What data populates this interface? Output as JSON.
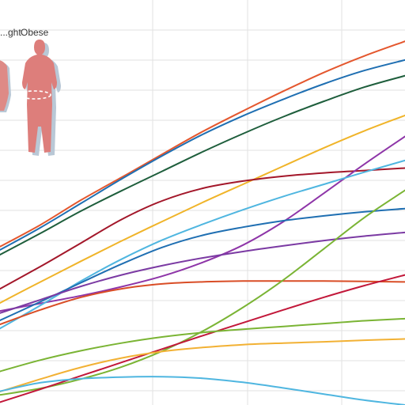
{
  "chart_data": {
    "type": "line",
    "title": "",
    "xlabel": "",
    "ylabel": "",
    "xlim": [
      0,
      100
    ],
    "ylim": [
      0,
      100
    ],
    "grid": true,
    "legend_labels": [
      "...ght",
      "Obese"
    ],
    "figure_colors": {
      "overweight": "#de8a86",
      "obese": "#dd7e7b",
      "shadow": "#b9c8d6",
      "waist_band": "#ffffff"
    },
    "series": [
      {
        "color": "#e4572e",
        "values": [
          [
            0,
            39.1
          ],
          [
            10,
            44.5
          ],
          [
            20,
            50.6
          ],
          [
            30,
            56.2
          ],
          [
            40,
            61.9
          ],
          [
            50,
            67.5
          ],
          [
            60,
            72.6
          ],
          [
            70,
            77.5
          ],
          [
            80,
            82.1
          ],
          [
            90,
            86.2
          ],
          [
            100,
            89.8
          ]
        ]
      },
      {
        "color": "#1f6fb2",
        "values": [
          [
            0,
            38.3
          ],
          [
            10,
            43.8
          ],
          [
            20,
            49.8
          ],
          [
            30,
            55.8
          ],
          [
            40,
            61.5
          ],
          [
            50,
            66.8
          ],
          [
            60,
            71.4
          ],
          [
            70,
            75.5
          ],
          [
            80,
            79.3
          ],
          [
            90,
            82.6
          ],
          [
            100,
            85.2
          ]
        ]
      },
      {
        "color": "#1e5e3c",
        "values": [
          [
            0,
            37.1
          ],
          [
            10,
            42.4
          ],
          [
            20,
            47.9
          ],
          [
            30,
            52.9
          ],
          [
            40,
            57.7
          ],
          [
            50,
            62.5
          ],
          [
            60,
            67.0
          ],
          [
            70,
            71.2
          ],
          [
            80,
            75.0
          ],
          [
            90,
            78.5
          ],
          [
            100,
            81.3
          ]
        ]
      },
      {
        "color": "#f0b429",
        "values": [
          [
            0,
            25.2
          ],
          [
            10,
            30.4
          ],
          [
            20,
            35.5
          ],
          [
            30,
            40.5
          ],
          [
            40,
            45.3
          ],
          [
            50,
            50.0
          ],
          [
            60,
            54.5
          ],
          [
            70,
            59.0
          ],
          [
            80,
            63.5
          ],
          [
            90,
            67.7
          ],
          [
            100,
            71.5
          ]
        ]
      },
      {
        "color": "#a3172a",
        "values": [
          [
            0,
            28.7
          ],
          [
            10,
            34.2
          ],
          [
            20,
            40.0
          ],
          [
            30,
            45.8
          ],
          [
            40,
            50.4
          ],
          [
            50,
            53.5
          ],
          [
            60,
            55.3
          ],
          [
            70,
            56.5
          ],
          [
            80,
            57.3
          ],
          [
            90,
            57.9
          ],
          [
            100,
            58.5
          ]
        ]
      },
      {
        "color": "#8e35a8",
        "values": [
          [
            0,
            23.2
          ],
          [
            10,
            25.1
          ],
          [
            20,
            27.0
          ],
          [
            30,
            29.2
          ],
          [
            40,
            31.8
          ],
          [
            50,
            35.2
          ],
          [
            60,
            39.5
          ],
          [
            70,
            45.3
          ],
          [
            80,
            52.3
          ],
          [
            90,
            59.5
          ],
          [
            100,
            66.3
          ]
        ]
      },
      {
        "color": "#4fb6e0",
        "values": [
          [
            0,
            18.9
          ],
          [
            10,
            24.6
          ],
          [
            20,
            30.6
          ],
          [
            30,
            36.0
          ],
          [
            40,
            40.7
          ],
          [
            50,
            44.6
          ],
          [
            60,
            48.2
          ],
          [
            70,
            51.5
          ],
          [
            80,
            54.5
          ],
          [
            90,
            57.5
          ],
          [
            100,
            60.4
          ]
        ]
      },
      {
        "color": "#1f6fb2",
        "values": [
          [
            0,
            20.9
          ],
          [
            10,
            25.5
          ],
          [
            20,
            30.2
          ],
          [
            30,
            34.8
          ],
          [
            40,
            38.9
          ],
          [
            50,
            41.9
          ],
          [
            60,
            43.9
          ],
          [
            70,
            45.5
          ],
          [
            80,
            46.7
          ],
          [
            90,
            47.7
          ],
          [
            100,
            48.5
          ]
        ]
      },
      {
        "color": "#7b3aa3",
        "values": [
          [
            0,
            22.7
          ],
          [
            10,
            26.0
          ],
          [
            20,
            29.3
          ],
          [
            30,
            32.1
          ],
          [
            40,
            34.4
          ],
          [
            50,
            36.3
          ],
          [
            60,
            37.9
          ],
          [
            70,
            39.3
          ],
          [
            80,
            40.6
          ],
          [
            90,
            41.7
          ],
          [
            100,
            42.6
          ]
        ]
      },
      {
        "color": "#d94d26",
        "values": [
          [
            0,
            19.9
          ],
          [
            10,
            23.5
          ],
          [
            20,
            26.6
          ],
          [
            30,
            28.7
          ],
          [
            40,
            29.9
          ],
          [
            50,
            30.4
          ],
          [
            60,
            30.6
          ],
          [
            70,
            30.6
          ],
          [
            80,
            30.6
          ],
          [
            90,
            30.5
          ],
          [
            100,
            30.4
          ]
        ]
      },
      {
        "color": "#7ab434",
        "values": [
          [
            0,
            2.5
          ],
          [
            10,
            4.1
          ],
          [
            20,
            6.4
          ],
          [
            30,
            9.4
          ],
          [
            40,
            13.3
          ],
          [
            50,
            18.2
          ],
          [
            60,
            24.1
          ],
          [
            70,
            30.9
          ],
          [
            80,
            38.6
          ],
          [
            90,
            46.3
          ],
          [
            100,
            53.0
          ]
        ]
      },
      {
        "color": "#c2183a",
        "values": [
          [
            0,
            0.7
          ],
          [
            10,
            3.9
          ],
          [
            20,
            7.2
          ],
          [
            30,
            10.5
          ],
          [
            40,
            13.8
          ],
          [
            50,
            17.1
          ],
          [
            60,
            20.3
          ],
          [
            70,
            23.5
          ],
          [
            80,
            26.6
          ],
          [
            90,
            29.5
          ],
          [
            100,
            32.1
          ]
        ]
      },
      {
        "color": "#7ab434",
        "values": [
          [
            0,
            8.3
          ],
          [
            10,
            11.1
          ],
          [
            20,
            13.4
          ],
          [
            30,
            15.3
          ],
          [
            40,
            16.8
          ],
          [
            50,
            17.9
          ],
          [
            60,
            18.7
          ],
          [
            70,
            19.4
          ],
          [
            80,
            20.1
          ],
          [
            90,
            20.8
          ],
          [
            100,
            21.3
          ]
        ]
      },
      {
        "color": "#f2b134",
        "values": [
          [
            0,
            3.3
          ],
          [
            10,
            6.4
          ],
          [
            20,
            9.3
          ],
          [
            30,
            11.6
          ],
          [
            40,
            13.2
          ],
          [
            50,
            14.2
          ],
          [
            60,
            14.9
          ],
          [
            70,
            15.3
          ],
          [
            80,
            15.6
          ],
          [
            90,
            16.0
          ],
          [
            100,
            16.3
          ]
        ]
      },
      {
        "color": "#4fb6e0",
        "values": [
          [
            0,
            3.4
          ],
          [
            10,
            5.5
          ],
          [
            20,
            6.5
          ],
          [
            30,
            6.9
          ],
          [
            40,
            7.0
          ],
          [
            50,
            6.6
          ],
          [
            60,
            5.6
          ],
          [
            70,
            4.2
          ],
          [
            80,
            2.7
          ],
          [
            90,
            1.2
          ],
          [
            100,
            0.0
          ]
        ]
      }
    ]
  }
}
